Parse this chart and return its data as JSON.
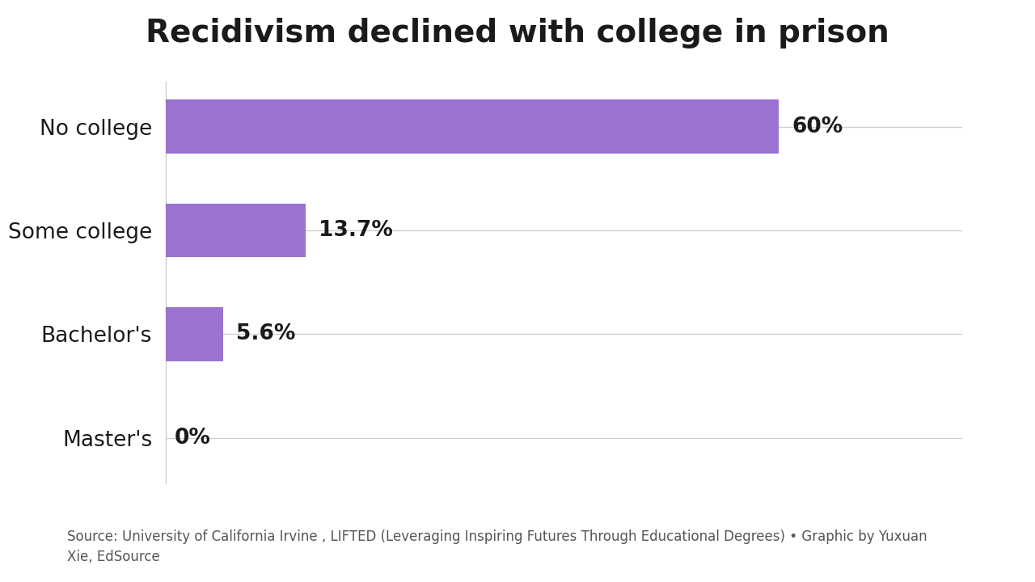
{
  "title": "Recidivism declined with college in prison",
  "categories": [
    "Master's",
    "Bachelor's",
    "Some college",
    "No college"
  ],
  "values": [
    0,
    5.6,
    13.7,
    60
  ],
  "labels": [
    "0%",
    "5.6%",
    "13.7%",
    "60%"
  ],
  "bar_color": "#9b72cf",
  "background_color": "#ffffff",
  "title_fontsize": 28,
  "label_fontsize": 19,
  "ytick_fontsize": 19,
  "source_text_line1": "Source: University of California Irvine , LIFTED (Leveraging Inspiring Futures Through Educational Degrees) • Graphic by Yuxuan",
  "source_text_line2": "Xie, EdSource",
  "source_fontsize": 12,
  "xlim": [
    0,
    78
  ],
  "bar_height": 0.52,
  "grid_color": "#cccccc",
  "text_color": "#1a1a1a",
  "source_color": "#555555"
}
